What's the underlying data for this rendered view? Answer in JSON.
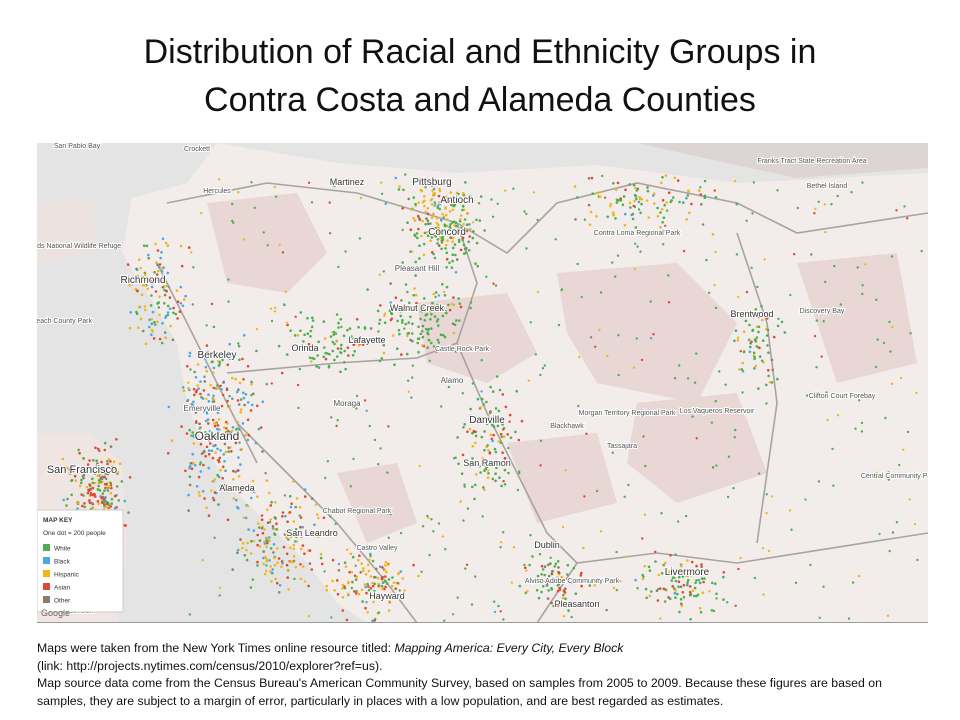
{
  "title": {
    "line1": "Distribution of Racial and Ethnicity Groups in",
    "line2": "Contra Costa and Alameda Counties"
  },
  "map": {
    "places": [
      "Pittsburg",
      "Antioch",
      "Martinez",
      "Concord",
      "Pleasant Hill",
      "Walnut Creek",
      "Richmond",
      "Berkeley",
      "Emeryville",
      "Oakland",
      "Alameda",
      "San Francisco",
      "Orinda",
      "Lafayette",
      "Moraga",
      "Alamo",
      "Danville",
      "San Ramon",
      "Dublin",
      "Pleasanton",
      "Livermore",
      "Hayward",
      "San Leandro",
      "Brentwood",
      "Crockett",
      "Hercules",
      "Castro Valley",
      "Blackhawk",
      "Tassajara",
      "Discovery Bay",
      "Bethel Island",
      "Contra Loma Regional Park",
      "Morgan Territory Regional Park",
      "Chabot Regional Park",
      "Marin Islands National Wildlife Refuge",
      "Paradise Beach County Park",
      "Franks Tract State Recreation Area",
      "Clifton Court Forebay",
      "Central Community Park",
      "Los Vaqueros Reservoir",
      "Alviso Adobe Community Park",
      "San Pablo Bay",
      "Castle Rock Park",
      "South San"
    ],
    "key": {
      "title": "MAP KEY",
      "subtitle": "One dot = 200 people",
      "items": [
        {
          "name": "White",
          "color": "#4caf50"
        },
        {
          "name": "Black",
          "color": "#4aa8e0"
        },
        {
          "name": "Hispanic",
          "color": "#f2b51b"
        },
        {
          "name": "Asian",
          "color": "#e0492f"
        },
        {
          "name": "Other",
          "color": "#8c7c70"
        }
      ]
    },
    "attribution": "Google"
  },
  "caption": {
    "line1_prefix": "Maps were taken from the New York Times online resource titled: ",
    "line1_italic": "Mapping America: Every City, Every Block",
    "line2": "(link: http://projects.nytimes.com/census/2010/explorer?ref=us).",
    "line3": "Map source data come from the Census Bureau's American Community Survey, based on samples from 2005 to 2009. Because these figures are based on samples, they are subject to a margin of error, particularly in places with a low population, and are best regarded as estimates."
  }
}
